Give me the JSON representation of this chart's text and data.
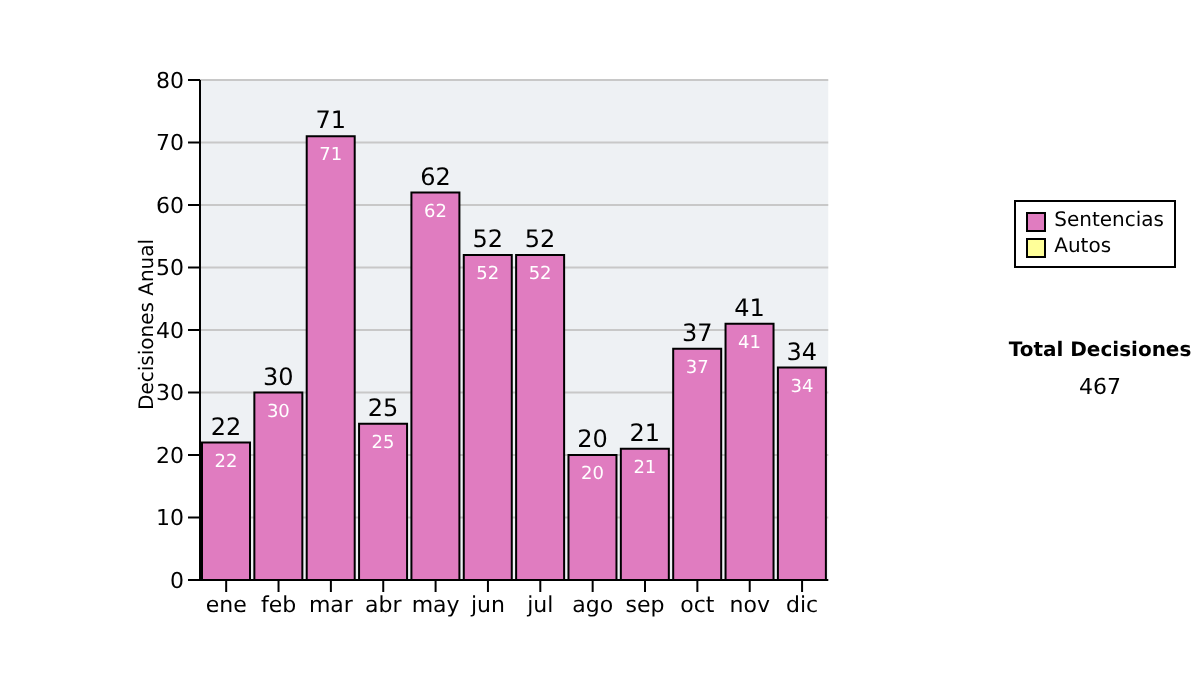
{
  "chart_data": {
    "type": "bar",
    "ylabel": "Decisiones Anual",
    "categories": [
      "ene",
      "feb",
      "mar",
      "abr",
      "may",
      "jun",
      "jul",
      "ago",
      "sep",
      "oct",
      "nov",
      "dic"
    ],
    "series": [
      {
        "name": "Sentencias",
        "color": "#e07cc0",
        "values": [
          22,
          30,
          71,
          25,
          62,
          52,
          52,
          20,
          21,
          37,
          41,
          34
        ],
        "value_labels": [
          "22",
          "30",
          "71",
          "25",
          "62",
          "52",
          "52",
          "20",
          "21",
          "37",
          "41",
          "34"
        ]
      },
      {
        "name": "Autos",
        "color": "#ffff99",
        "values": [
          0,
          0,
          0,
          0,
          0,
          0,
          0,
          0,
          0,
          0,
          0,
          0
        ]
      }
    ],
    "stacked": true,
    "totals": [
      "22",
      "30",
      "71",
      "25",
      "62",
      "52",
      "52",
      "20",
      "21",
      "37",
      "41",
      "34"
    ],
    "ylim": [
      0,
      80
    ],
    "yticks": [
      0,
      10,
      20,
      30,
      40,
      50,
      60,
      70,
      80
    ],
    "grid": "y",
    "legend": "right",
    "annotations": [
      "Total Decisiones",
      "467"
    ]
  }
}
